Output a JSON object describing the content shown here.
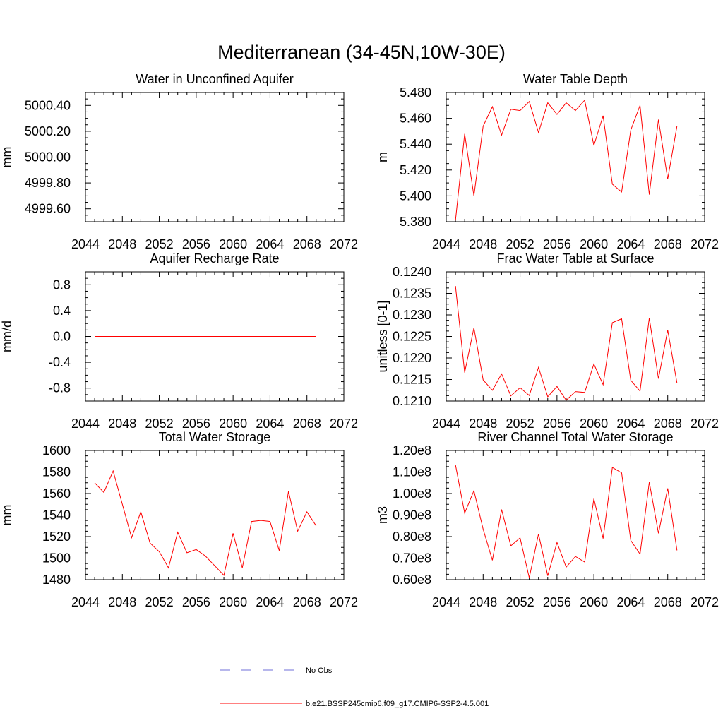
{
  "title": "Mediterranean (34-45N,10W-30E)",
  "colors": {
    "model": "#ff0000",
    "obs": "#6f6fd8",
    "axis": "#000000"
  },
  "legend": {
    "obs_label": "No Obs",
    "model_label": "b.e21.BSSP245cmip6.f09_g17.CMIP6-SSP2-4.5.001"
  },
  "chart_data": [
    {
      "type": "line",
      "title": "Water in Unconfined Aquifer",
      "xlabel": "",
      "ylabel": "mm",
      "xlim": [
        2044,
        2072
      ],
      "ylim": [
        4999.5,
        5000.5
      ],
      "xticks": [
        2044,
        2048,
        2052,
        2056,
        2060,
        2064,
        2068,
        2072
      ],
      "yticks": [
        "4999.60",
        "5000.40"
      ],
      "ytick_values": [
        4999.6,
        4999.8,
        5000.0,
        5000.2,
        5000.4
      ],
      "ytick_labels": [
        "4999.60",
        "4999.80",
        "5000.00",
        "5000.20",
        "5000.40"
      ],
      "x": [
        2045,
        2046,
        2047,
        2048,
        2049,
        2050,
        2051,
        2052,
        2053,
        2054,
        2055,
        2056,
        2057,
        2058,
        2059,
        2060,
        2061,
        2062,
        2063,
        2064,
        2065,
        2066,
        2067,
        2068,
        2069
      ],
      "values": [
        5000,
        5000,
        5000,
        5000,
        5000,
        5000,
        5000,
        5000,
        5000,
        5000,
        5000,
        5000,
        5000,
        5000,
        5000,
        5000,
        5000,
        5000,
        5000,
        5000,
        5000,
        5000,
        5000,
        5000,
        5000
      ]
    },
    {
      "type": "line",
      "title": "Water Table Depth",
      "xlabel": "",
      "ylabel": "m",
      "xlim": [
        2044,
        2072
      ],
      "ylim": [
        5.38,
        5.48
      ],
      "xticks": [
        2044,
        2048,
        2052,
        2056,
        2060,
        2064,
        2068,
        2072
      ],
      "ytick_values": [
        5.38,
        5.4,
        5.42,
        5.44,
        5.46,
        5.48
      ],
      "ytick_labels": [
        "5.380",
        "5.400",
        "5.420",
        "5.440",
        "5.460",
        "5.480"
      ],
      "x": [
        2045,
        2046,
        2047,
        2048,
        2049,
        2050,
        2051,
        2052,
        2053,
        2054,
        2055,
        2056,
        2057,
        2058,
        2059,
        2060,
        2061,
        2062,
        2063,
        2064,
        2065,
        2066,
        2067,
        2068,
        2069
      ],
      "values": [
        5.381,
        5.448,
        5.4,
        5.454,
        5.469,
        5.447,
        5.467,
        5.466,
        5.473,
        5.449,
        5.472,
        5.463,
        5.472,
        5.466,
        5.474,
        5.439,
        5.462,
        5.409,
        5.403,
        5.451,
        5.47,
        5.401,
        5.459,
        5.413,
        5.454
      ]
    },
    {
      "type": "line",
      "title": "Aquifer Recharge Rate",
      "xlabel": "",
      "ylabel": "mm/d",
      "xlim": [
        2044,
        2072
      ],
      "ylim": [
        -1.0,
        1.0
      ],
      "xticks": [
        2044,
        2048,
        2052,
        2056,
        2060,
        2064,
        2068,
        2072
      ],
      "ytick_values": [
        -0.8,
        -0.4,
        0.0,
        0.4,
        0.8
      ],
      "ytick_labels": [
        "-0.8",
        "-0.4",
        "0.0",
        "0.4",
        "0.8"
      ],
      "x": [
        2045,
        2046,
        2047,
        2048,
        2049,
        2050,
        2051,
        2052,
        2053,
        2054,
        2055,
        2056,
        2057,
        2058,
        2059,
        2060,
        2061,
        2062,
        2063,
        2064,
        2065,
        2066,
        2067,
        2068,
        2069
      ],
      "values": [
        0,
        0,
        0,
        0,
        0,
        0,
        0,
        0,
        0,
        0,
        0,
        0,
        0,
        0,
        0,
        0,
        0,
        0,
        0,
        0,
        0,
        0,
        0,
        0,
        0
      ]
    },
    {
      "type": "line",
      "title": "Frac Water Table at Surface",
      "xlabel": "",
      "ylabel": "unitless [0-1]",
      "xlim": [
        2044,
        2072
      ],
      "ylim": [
        0.121,
        0.124
      ],
      "xticks": [
        2044,
        2048,
        2052,
        2056,
        2060,
        2064,
        2068,
        2072
      ],
      "ytick_values": [
        0.121,
        0.1215,
        0.122,
        0.1225,
        0.123,
        0.1235,
        0.124
      ],
      "ytick_labels": [
        "0.1210",
        "0.1215",
        "0.1220",
        "0.1225",
        "0.1230",
        "0.1235",
        "0.1240"
      ],
      "x": [
        2045,
        2046,
        2047,
        2048,
        2049,
        2050,
        2051,
        2052,
        2053,
        2054,
        2055,
        2056,
        2057,
        2058,
        2059,
        2060,
        2061,
        2062,
        2063,
        2064,
        2065,
        2066,
        2067,
        2068,
        2069
      ],
      "values": [
        0.12367,
        0.12166,
        0.1227,
        0.12149,
        0.12125,
        0.12163,
        0.12112,
        0.12131,
        0.12113,
        0.12178,
        0.1211,
        0.12134,
        0.12102,
        0.12122,
        0.1212,
        0.12186,
        0.12138,
        0.12282,
        0.12291,
        0.12148,
        0.12123,
        0.12293,
        0.12152,
        0.12265,
        0.12142
      ]
    },
    {
      "type": "line",
      "title": "Total Water Storage",
      "xlabel": "",
      "ylabel": "mm",
      "xlim": [
        2044,
        2072
      ],
      "ylim": [
        1480,
        1600
      ],
      "xticks": [
        2044,
        2048,
        2052,
        2056,
        2060,
        2064,
        2068,
        2072
      ],
      "ytick_values": [
        1480,
        1500,
        1520,
        1540,
        1560,
        1580,
        1600
      ],
      "ytick_labels": [
        "1480",
        "1500",
        "1520",
        "1540",
        "1560",
        "1580",
        "1600"
      ],
      "x": [
        2045,
        2046,
        2047,
        2048,
        2049,
        2050,
        2051,
        2052,
        2053,
        2054,
        2055,
        2056,
        2057,
        2058,
        2059,
        2060,
        2061,
        2062,
        2063,
        2064,
        2065,
        2066,
        2067,
        2068,
        2069
      ],
      "values": [
        1570,
        1561,
        1581,
        1550,
        1519,
        1543,
        1514,
        1506,
        1491,
        1524,
        1505,
        1508,
        1502,
        1493,
        1484,
        1523,
        1491,
        1534,
        1535,
        1534,
        1507,
        1562,
        1525,
        1543,
        1530
      ]
    },
    {
      "type": "line",
      "title": "River Channel Total Water Storage",
      "xlabel": "",
      "ylabel": "m3",
      "xlim": [
        2044,
        2072
      ],
      "ylim": [
        60000000,
        120000000
      ],
      "xticks": [
        2044,
        2048,
        2052,
        2056,
        2060,
        2064,
        2068,
        2072
      ],
      "ytick_values": [
        60000000,
        70000000,
        80000000,
        90000000,
        100000000,
        110000000,
        120000000
      ],
      "ytick_labels": [
        "0.60e8",
        "0.70e8",
        "0.80e8",
        "0.90e8",
        "1.00e8",
        "1.10e8",
        "1.20e8"
      ],
      "x": [
        2045,
        2046,
        2047,
        2048,
        2049,
        2050,
        2051,
        2052,
        2053,
        2054,
        2055,
        2056,
        2057,
        2058,
        2059,
        2060,
        2061,
        2062,
        2063,
        2064,
        2065,
        2066,
        2067,
        2068,
        2069
      ],
      "values": [
        113300000,
        90900000,
        101300000,
        83400000,
        69000000,
        92600000,
        75700000,
        79400000,
        60900000,
        81200000,
        61800000,
        77300000,
        65800000,
        70800000,
        68200000,
        97600000,
        79100000,
        112100000,
        109600000,
        78200000,
        71900000,
        105300000,
        81500000,
        102400000,
        73600000
      ]
    }
  ]
}
